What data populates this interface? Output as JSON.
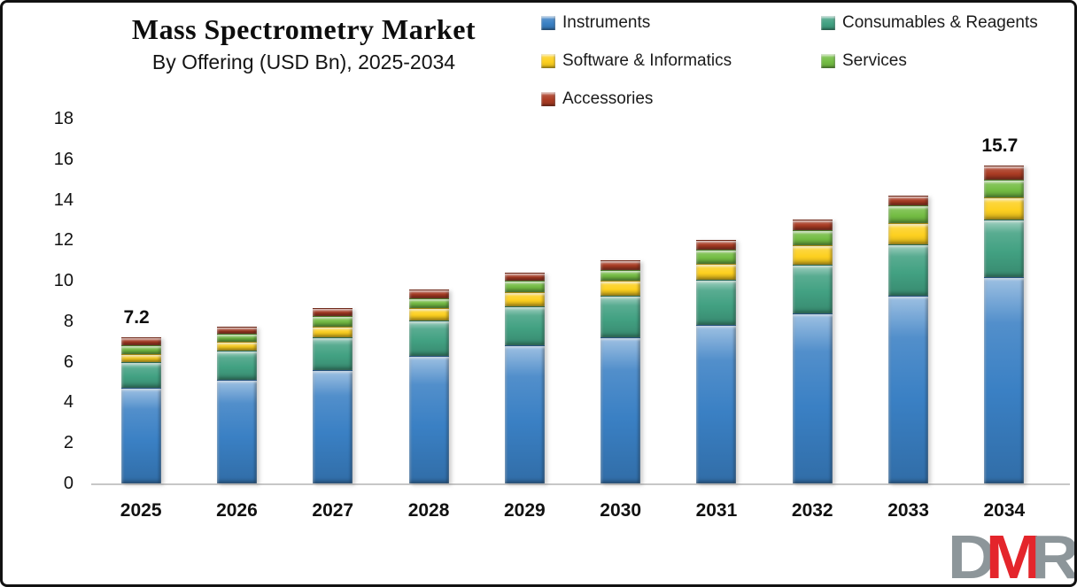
{
  "title": "Mass Spectrometry Market",
  "subtitle": "By Offering (USD Bn), 2025-2034",
  "legend": {
    "items": [
      {
        "label": "Instruments",
        "color": "#3a80c4"
      },
      {
        "label": "Consumables & Reagents",
        "color": "#42a182"
      },
      {
        "label": "Software & Informatics",
        "color": "#fdd020"
      },
      {
        "label": "Services",
        "color": "#74bd44"
      },
      {
        "label": "Accessories",
        "color": "#ab3c24"
      }
    ],
    "position": "top-right"
  },
  "chart_data": {
    "type": "bar",
    "stacked": true,
    "title": "Mass Spectrometry Market",
    "subtitle": "By Offering (USD Bn), 2025-2034",
    "xlabel": "",
    "ylabel": "USD Bn",
    "categories": [
      "2025",
      "2026",
      "2027",
      "2028",
      "2029",
      "2030",
      "2031",
      "2032",
      "2033",
      "2034"
    ],
    "series": [
      {
        "name": "Instruments",
        "color": "#3a80c4",
        "values": [
          4.7,
          5.1,
          5.6,
          6.3,
          6.8,
          7.2,
          7.8,
          8.4,
          9.25,
          10.2
        ]
      },
      {
        "name": "Consumables & Reagents",
        "color": "#42a182",
        "values": [
          1.3,
          1.45,
          1.6,
          1.75,
          1.95,
          2.05,
          2.25,
          2.4,
          2.55,
          2.8
        ]
      },
      {
        "name": "Software & Informatics",
        "color": "#fdd020",
        "values": [
          0.4,
          0.45,
          0.55,
          0.6,
          0.7,
          0.75,
          0.8,
          0.95,
          1.05,
          1.1
        ]
      },
      {
        "name": "Services",
        "color": "#74bd44",
        "values": [
          0.4,
          0.4,
          0.5,
          0.5,
          0.55,
          0.55,
          0.7,
          0.75,
          0.85,
          0.9
        ]
      },
      {
        "name": "Accessories",
        "color": "#ab3c24",
        "values": [
          0.4,
          0.35,
          0.4,
          0.4,
          0.4,
          0.45,
          0.45,
          0.5,
          0.5,
          0.7
        ]
      }
    ],
    "totals": [
      7.2,
      7.75,
      8.65,
      9.55,
      10.4,
      11.0,
      12.0,
      13.0,
      14.2,
      15.7
    ],
    "data_labels": {
      "2025": "7.2",
      "2034": "15.7"
    },
    "ylim": [
      0,
      18
    ],
    "y_ticks": [
      0,
      2,
      4,
      6,
      8,
      10,
      12,
      14,
      16,
      18
    ],
    "grid": false,
    "legend_position": "top-right"
  },
  "watermark": {
    "letters": [
      {
        "char": "D",
        "color": "#8d969a"
      },
      {
        "char": "M",
        "color": "#e4252b"
      },
      {
        "char": "R",
        "color": "#8d969a"
      }
    ]
  }
}
